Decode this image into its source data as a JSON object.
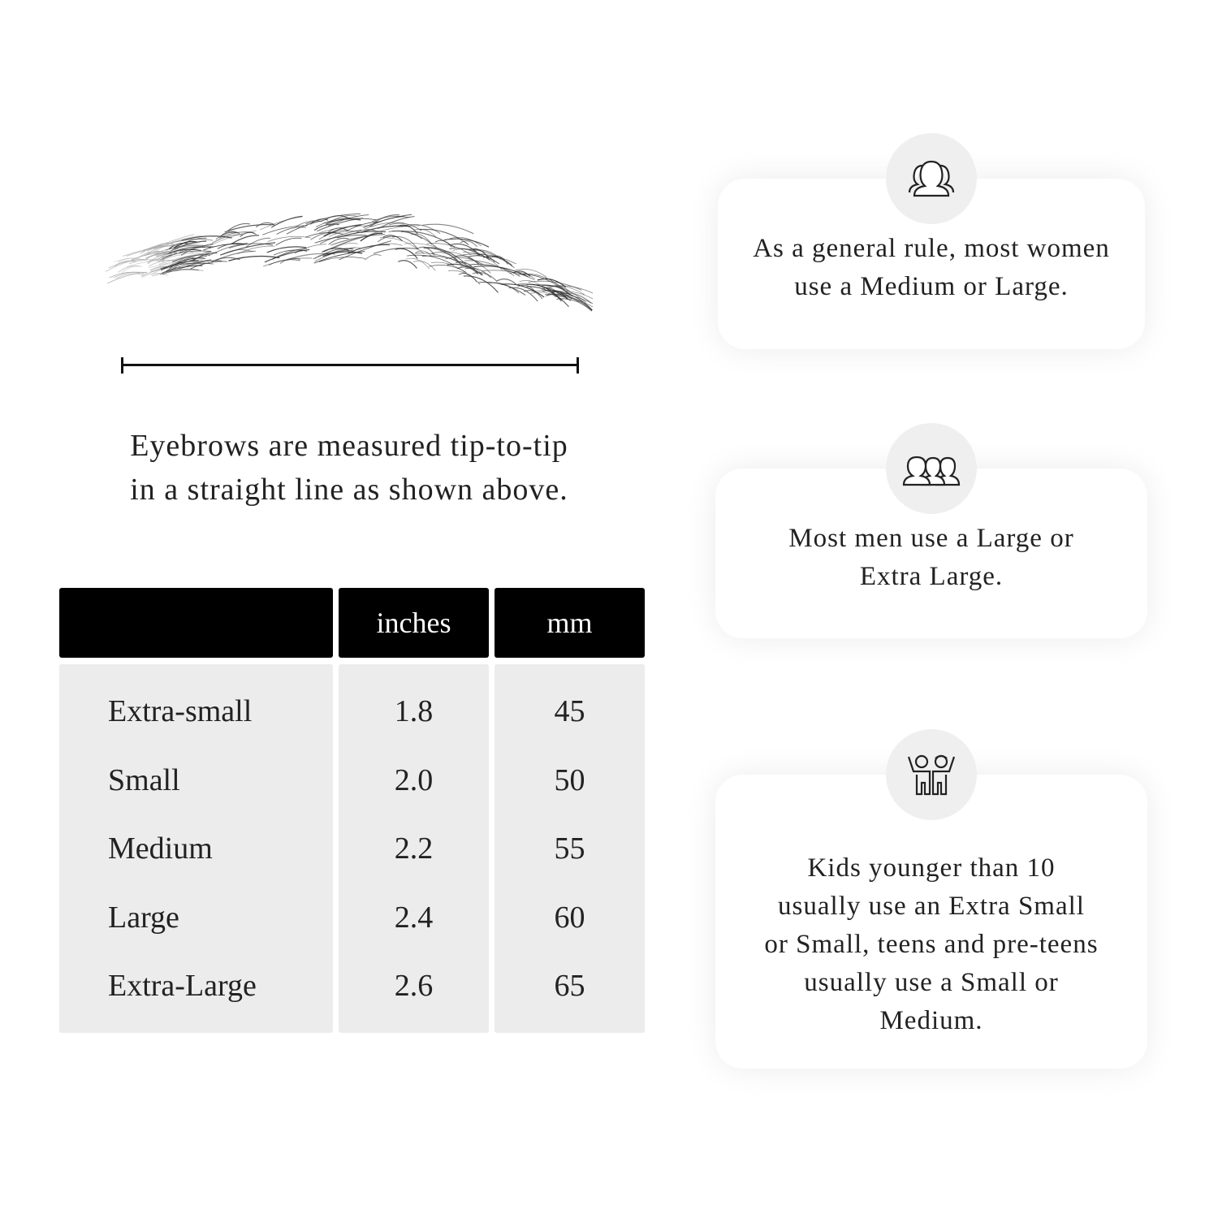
{
  "measurement": {
    "caption_line1": "Eyebrows are measured tip-to-tip",
    "caption_line2": "in a straight line as shown above."
  },
  "table": {
    "headers": [
      "",
      "inches",
      "mm"
    ],
    "rows": [
      {
        "size": "Extra-small",
        "inches": "1.8",
        "mm": "45"
      },
      {
        "size": "Small",
        "inches": "2.0",
        "mm": "50"
      },
      {
        "size": "Medium",
        "inches": "2.2",
        "mm": "55"
      },
      {
        "size": "Large",
        "inches": "2.4",
        "mm": "60"
      },
      {
        "size": "Extra-Large",
        "inches": "2.6",
        "mm": "65"
      }
    ]
  },
  "tips": [
    {
      "icon": "women-group-icon",
      "text": "As a general rule, most women use a Medium or Large."
    },
    {
      "icon": "men-group-icon",
      "text": "Most men use a Large or Extra Large."
    },
    {
      "icon": "kids-icon",
      "text": "Kids younger than 10 usually use an Extra Small or Small, teens and pre-teens usually use a Small or Medium."
    }
  ],
  "colors": {
    "header_bg": "#000000",
    "cell_bg": "#ececec",
    "icon_circle": "#efefef"
  }
}
